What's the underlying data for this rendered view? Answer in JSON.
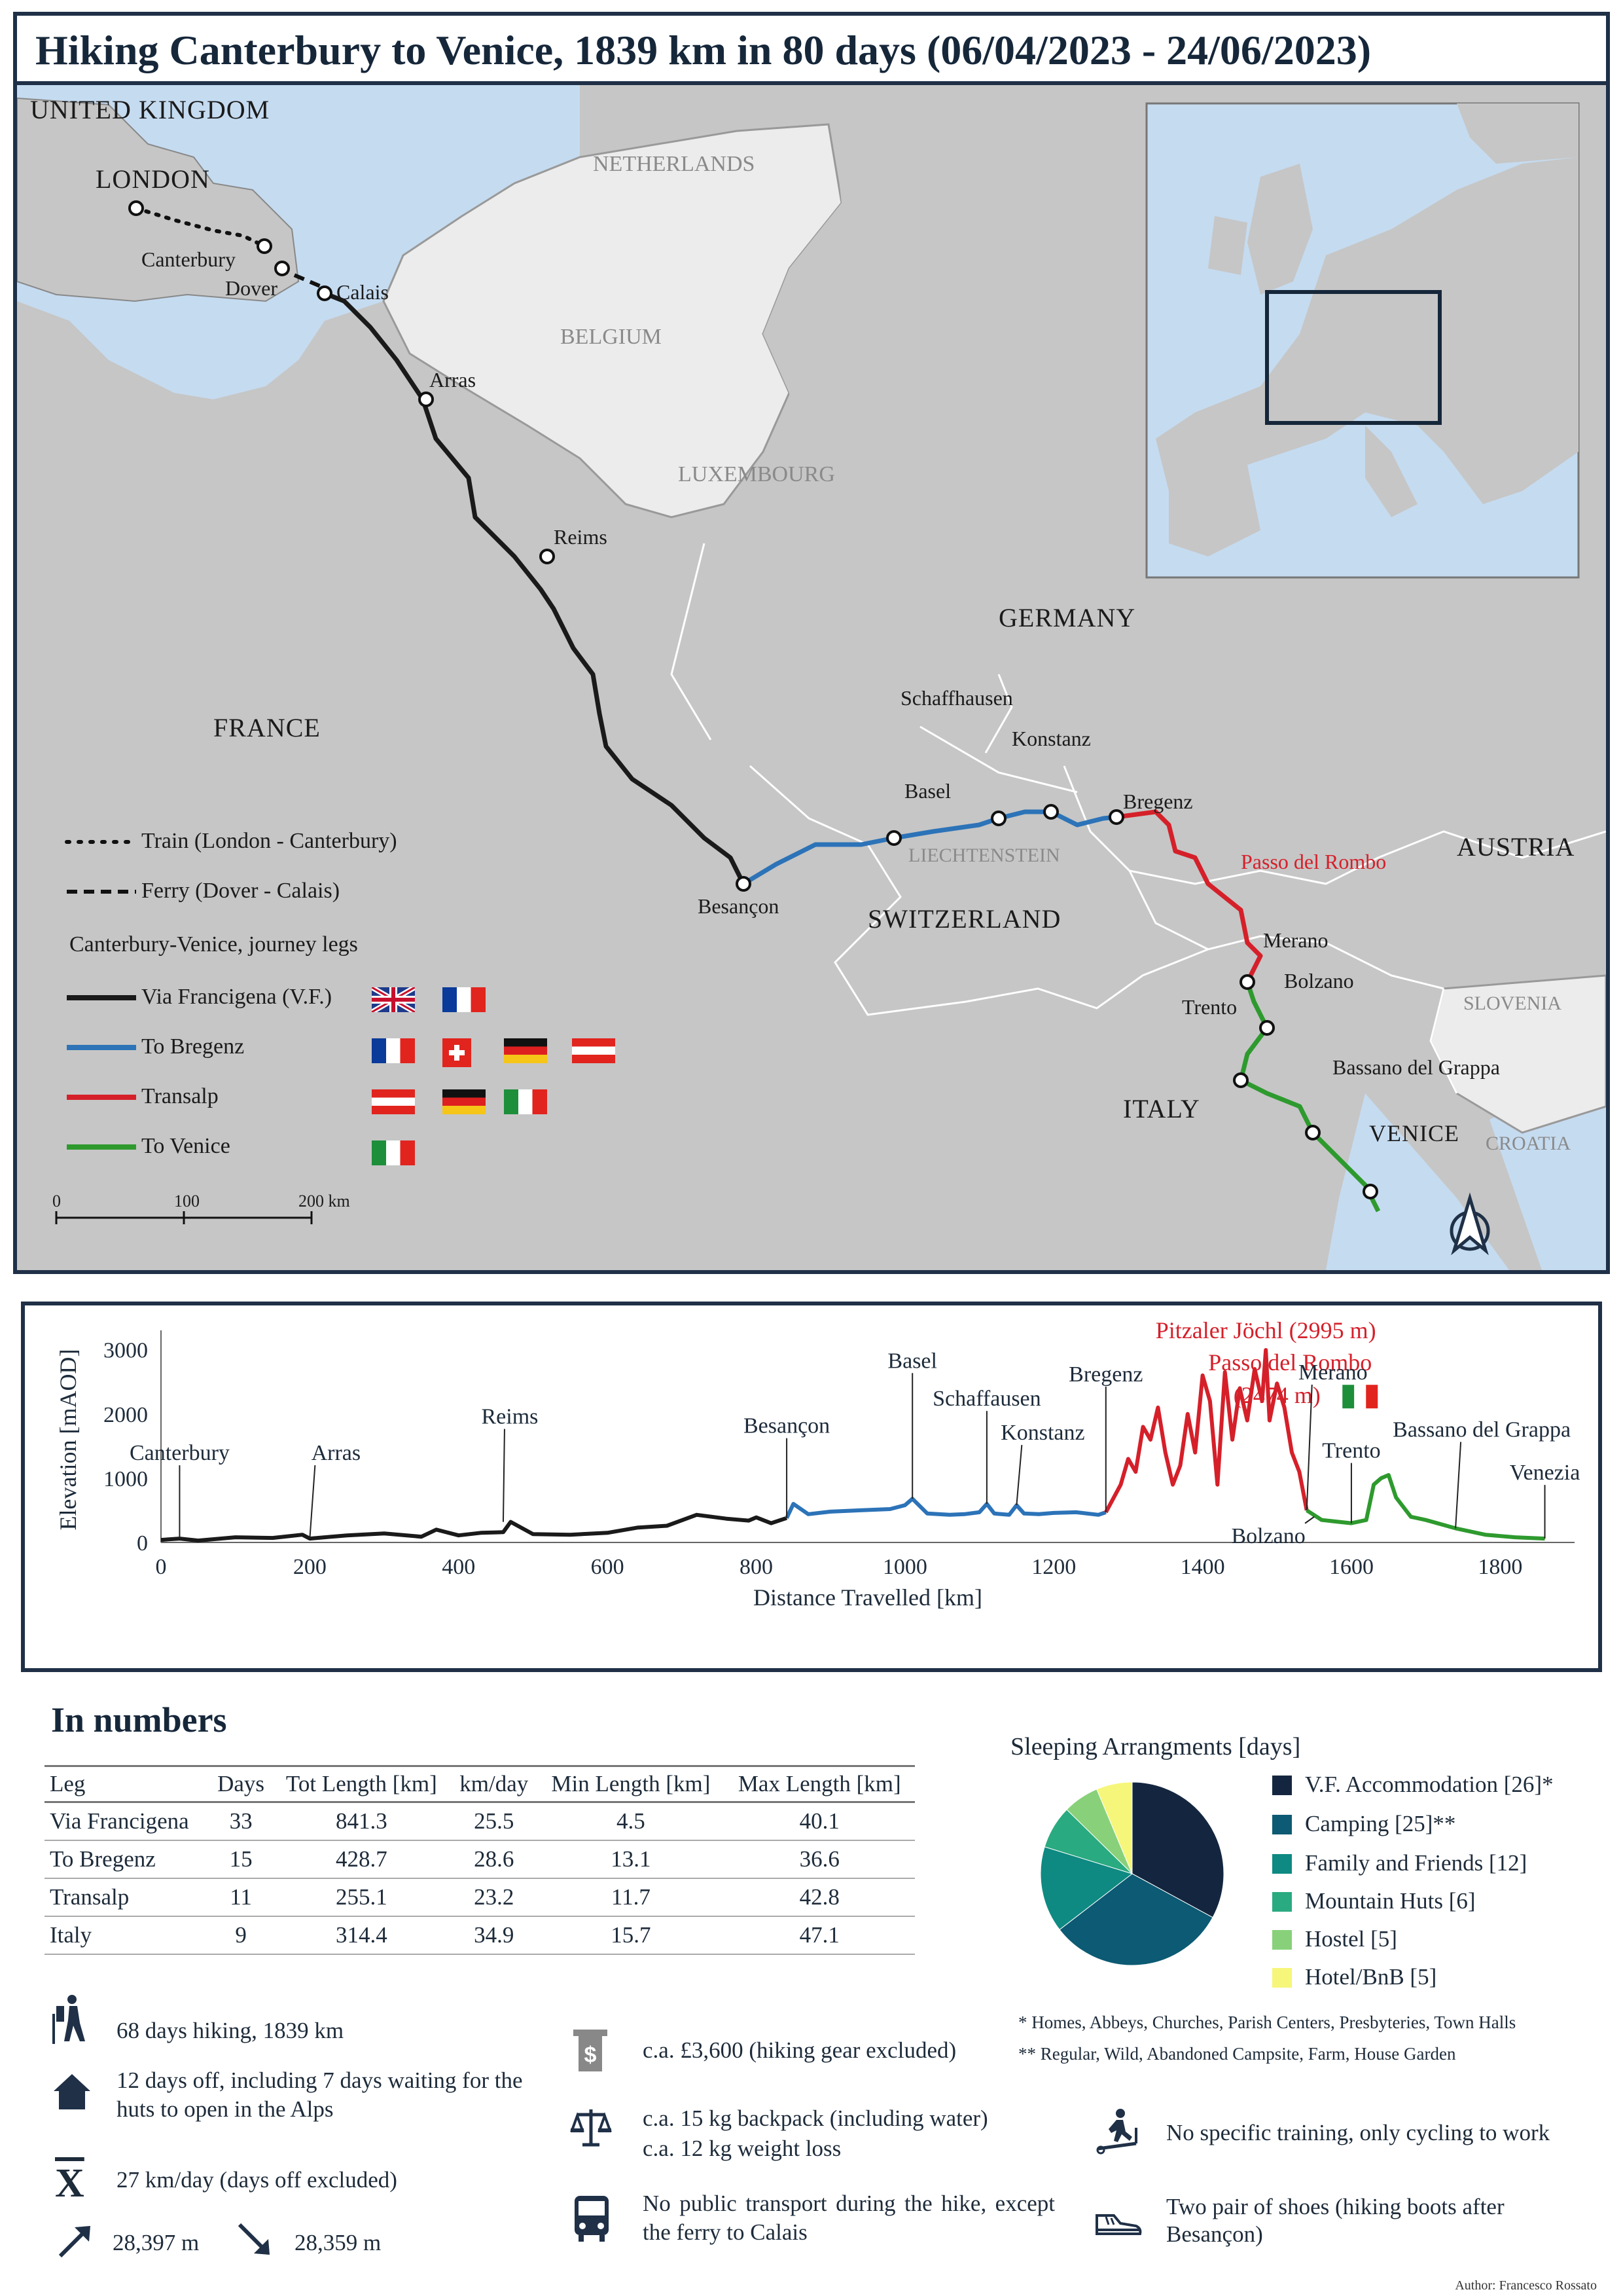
{
  "title": "Hiking Canterbury to Venice, 1839 km in 80 days (06/04/2023 - 24/06/2023)",
  "map": {
    "countries": [
      "UNITED KINGDOM",
      "NETHERLANDS",
      "BELGIUM",
      "LUXEMBOURG",
      "GERMANY",
      "FRANCE",
      "SWITZERLAND",
      "LIECHTENSTEIN",
      "AUSTRIA",
      "ITALY",
      "SLOVENIA",
      "CROATIA"
    ],
    "cities": [
      "LONDON",
      "Canterbury",
      "Dover",
      "Calais",
      "Arras",
      "Reims",
      "Besançon",
      "Basel",
      "Schaffhausen",
      "Konstanz",
      "Bregenz",
      "Passo del Rombo",
      "Merano",
      "Bolzano",
      "Trento",
      "Bassano del Grappa",
      "VENICE"
    ],
    "legend": {
      "train": "Train (London - Canterbury)",
      "ferry": "Ferry (Dover - Calais)",
      "legs_title": "Canterbury-Venice, journey legs",
      "legs": [
        {
          "name": "Via Francigena (V.F.)",
          "color": "#1a1a1a",
          "flags": [
            "uk",
            "fr"
          ]
        },
        {
          "name": "To Bregenz",
          "color": "#2c73b8",
          "flags": [
            "fr",
            "ch",
            "de",
            "at"
          ]
        },
        {
          "name": "Transalp",
          "color": "#d5202a",
          "flags": [
            "at",
            "de",
            "it"
          ]
        },
        {
          "name": "To Venice",
          "color": "#2e9a2e",
          "flags": [
            "it"
          ]
        }
      ]
    },
    "scale": {
      "ticks": [
        "0",
        "100",
        "200 km"
      ]
    }
  },
  "chart_data": [
    {
      "type": "line",
      "title": "",
      "xlabel": "Distance Travelled [km]",
      "ylabel": "Elevation [mAOD]",
      "xlim": [
        0,
        1900
      ],
      "ylim": [
        0,
        3200
      ],
      "xticks": [
        0,
        200,
        400,
        600,
        800,
        1000,
        1200,
        1400,
        1600,
        1800
      ],
      "yticks": [
        0,
        1000,
        2000,
        3000
      ],
      "series": [
        {
          "name": "Via Francigena (V.F.)",
          "color": "#1a1a1a",
          "x": [
            0,
            25,
            50,
            100,
            150,
            190,
            200,
            250,
            300,
            350,
            370,
            400,
            430,
            460,
            470,
            500,
            550,
            600,
            640,
            680,
            720,
            760,
            790,
            800,
            820,
            841
          ],
          "y": [
            40,
            60,
            30,
            80,
            70,
            120,
            60,
            110,
            140,
            90,
            200,
            110,
            150,
            160,
            320,
            130,
            120,
            150,
            230,
            260,
            430,
            370,
            340,
            390,
            300,
            380
          ]
        },
        {
          "name": "To Bregenz",
          "color": "#2c73b8",
          "x": [
            841,
            850,
            870,
            900,
            940,
            980,
            1000,
            1010,
            1030,
            1060,
            1080,
            1100,
            1110,
            1120,
            1140,
            1150,
            1160,
            1180,
            1200,
            1230,
            1260,
            1270
          ],
          "y": [
            380,
            600,
            440,
            480,
            500,
            520,
            580,
            680,
            450,
            430,
            440,
            470,
            600,
            450,
            430,
            580,
            450,
            440,
            460,
            470,
            430,
            470
          ]
        },
        {
          "name": "Transalp",
          "color": "#d5202a",
          "x": [
            1270,
            1290,
            1300,
            1310,
            1320,
            1330,
            1340,
            1350,
            1360,
            1370,
            1380,
            1390,
            1400,
            1410,
            1420,
            1430,
            1440,
            1450,
            1460,
            1470,
            1480,
            1485,
            1490,
            1500,
            1510,
            1520,
            1530,
            1540
          ],
          "y": [
            470,
            900,
            1300,
            1100,
            1800,
            1600,
            2100,
            1400,
            900,
            1200,
            2000,
            1400,
            2600,
            2200,
            900,
            2650,
            1600,
            2400,
            1900,
            2700,
            2200,
            2995,
            1900,
            2474,
            2100,
            1400,
            1100,
            500
          ]
        },
        {
          "name": "To Venice",
          "color": "#2e9a2e",
          "x": [
            1540,
            1560,
            1600,
            1620,
            1630,
            1640,
            1650,
            1660,
            1680,
            1700,
            1740,
            1780,
            1820,
            1860
          ],
          "y": [
            500,
            350,
            300,
            350,
            900,
            1000,
            1050,
            700,
            400,
            350,
            220,
            120,
            80,
            60
          ]
        }
      ],
      "annotations": [
        {
          "label": "Canterbury",
          "x": 25,
          "y": 60
        },
        {
          "label": "Arras",
          "x": 200,
          "y": 60
        },
        {
          "label": "Reims",
          "x": 460,
          "y": 320
        },
        {
          "label": "Besançon",
          "x": 841,
          "y": 380
        },
        {
          "label": "Basel",
          "x": 1010,
          "y": 680
        },
        {
          "label": "Schaffausen",
          "x": 1110,
          "y": 600
        },
        {
          "label": "Konstanz",
          "x": 1150,
          "y": 580
        },
        {
          "label": "Bregenz",
          "x": 1270,
          "y": 470
        },
        {
          "label": "Pitzaler Jöchl (2995 m)",
          "x": 1485,
          "y": 2995
        },
        {
          "label": "Passo del Rombo",
          "x": 1500,
          "y": 2474
        },
        {
          "label": "(2474 m)",
          "x": 1500,
          "y": 2474
        },
        {
          "label": "Merano",
          "x": 1540,
          "y": 500
        },
        {
          "label": "Bolzano",
          "x": 1550,
          "y": 400
        },
        {
          "label": "Trento",
          "x": 1600,
          "y": 300
        },
        {
          "label": "Bassano del Grappa",
          "x": 1740,
          "y": 220
        },
        {
          "label": "Venezia",
          "x": 1860,
          "y": 60
        }
      ]
    },
    {
      "type": "table",
      "title": "In numbers",
      "columns": [
        "Leg",
        "Days",
        "Tot Length [km]",
        "km/day",
        "Min Length [km]",
        "Max Length [km]"
      ],
      "rows": [
        [
          "Via Francigena",
          "33",
          "841.3",
          "25.5",
          "4.5",
          "40.1"
        ],
        [
          "To Bregenz",
          "15",
          "428.7",
          "28.6",
          "13.1",
          "36.6"
        ],
        [
          "Transalp",
          "11",
          "255.1",
          "23.2",
          "11.7",
          "42.8"
        ],
        [
          "Italy",
          "9",
          "314.4",
          "34.9",
          "15.7",
          "47.1"
        ]
      ]
    },
    {
      "type": "pie",
      "title": "Sleeping Arrangments [days]",
      "categories": [
        "V.F. Accommodation [26]*",
        "Camping [25]**",
        "Family and Friends [12]",
        "Mountain Huts [6]",
        "Hostel [5]",
        "Hotel/BnB [5]"
      ],
      "values": [
        26,
        25,
        12,
        6,
        5,
        5
      ],
      "colors": [
        "#14263f",
        "#0c5a73",
        "#0e8a82",
        "#2aaa80",
        "#88d17a",
        "#f6f67a"
      ]
    }
  ],
  "notes": {
    "n1": "* Homes, Abbeys, Churches, Parish Centers, Presbyteries, Town Halls",
    "n2": "** Regular, Wild, Abandoned Campsite, Farm, House Garden"
  },
  "facts": {
    "hiking": "68 days hiking, 1839 km",
    "off": "12 days off, including 7 days waiting for the huts to open in the Alps",
    "avg": "27 km/day (days off excluded)",
    "up": "28,397 m",
    "down": "28,359 m",
    "cost": "c.a. £3,600 (hiking gear excluded)",
    "weight1": "c.a. 15 kg backpack (including water)",
    "weight2": "c.a. 12 kg weight loss",
    "transport": "No public transport during the hike, except the ferry to Calais",
    "training": "No specific training, only cycling to work",
    "shoes": "Two pair of shoes (hiking boots after Besançon)"
  },
  "author": "Author: Francesco Rossato",
  "colors": {
    "accent": "#1f3047",
    "sea": "#c5dbf0",
    "land": "#c6c6c6",
    "land_light": "#ececec"
  }
}
